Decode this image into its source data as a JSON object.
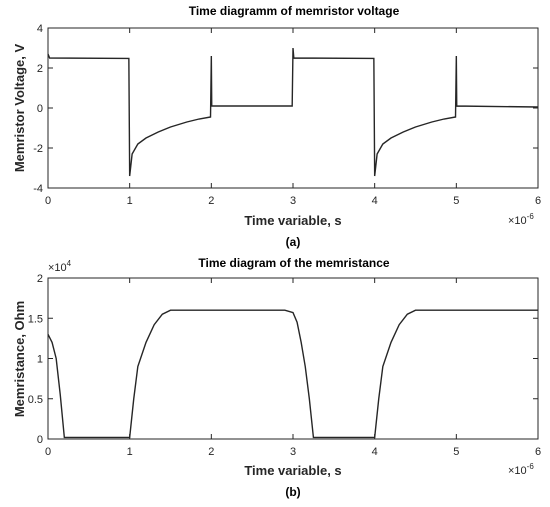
{
  "chart_data": [
    {
      "type": "line",
      "title": "Time diagramm of memristor voltage",
      "xlabel": "Time variable, s",
      "ylabel": "Memristor Voltage, V",
      "x_exponent_label": "×10",
      "x_exponent": "-6",
      "subfigure_label": "(a)",
      "xlim": [
        0,
        6
      ],
      "ylim": [
        -4,
        4
      ],
      "xticks": [
        "0",
        "1",
        "2",
        "3",
        "4",
        "5",
        "6"
      ],
      "yticks": [
        "-4",
        "-2",
        "0",
        "2",
        "4"
      ],
      "grid": false,
      "series": [
        {
          "values": [
            [
              0,
              2.7
            ],
            [
              0.02,
              2.5
            ],
            [
              0.99,
              2.48
            ],
            [
              1.0,
              -3.4
            ],
            [
              1.03,
              -2.3
            ],
            [
              1.1,
              -1.8
            ],
            [
              1.2,
              -1.5
            ],
            [
              1.35,
              -1.2
            ],
            [
              1.5,
              -0.95
            ],
            [
              1.7,
              -0.7
            ],
            [
              1.85,
              -0.55
            ],
            [
              1.99,
              -0.45
            ],
            [
              2.0,
              2.6
            ],
            [
              2.005,
              0.1
            ],
            [
              2.99,
              0.1
            ],
            [
              3.0,
              3.0
            ],
            [
              3.01,
              2.5
            ],
            [
              3.99,
              2.48
            ],
            [
              4.0,
              -3.4
            ],
            [
              4.03,
              -2.3
            ],
            [
              4.1,
              -1.8
            ],
            [
              4.2,
              -1.5
            ],
            [
              4.35,
              -1.2
            ],
            [
              4.5,
              -0.95
            ],
            [
              4.7,
              -0.7
            ],
            [
              4.85,
              -0.55
            ],
            [
              4.99,
              -0.45
            ],
            [
              5.0,
              2.6
            ],
            [
              5.005,
              0.1
            ],
            [
              6.0,
              0.05
            ]
          ]
        }
      ]
    },
    {
      "type": "line",
      "title": "Time diagram of the memristance",
      "xlabel": "Time variable, s",
      "ylabel": "Memristance, Ohm",
      "x_exponent_label": "×10",
      "x_exponent": "-6",
      "y_exponent_label": "×10",
      "y_exponent": "4",
      "subfigure_label": "(b)",
      "xlim": [
        0,
        6
      ],
      "ylim": [
        0,
        2
      ],
      "xticks": [
        "0",
        "1",
        "2",
        "3",
        "4",
        "5",
        "6"
      ],
      "yticks": [
        "0",
        "0.5",
        "1",
        "1.5",
        "2"
      ],
      "grid": false,
      "series": [
        {
          "values": [
            [
              0,
              1.3
            ],
            [
              0.05,
              1.2
            ],
            [
              0.1,
              1.0
            ],
            [
              0.15,
              0.55
            ],
            [
              0.2,
              0.02
            ],
            [
              0.99,
              0.02
            ],
            [
              1.0,
              0.02
            ],
            [
              1.05,
              0.5
            ],
            [
              1.1,
              0.9
            ],
            [
              1.2,
              1.2
            ],
            [
              1.3,
              1.42
            ],
            [
              1.4,
              1.55
            ],
            [
              1.5,
              1.6
            ],
            [
              2.9,
              1.6
            ],
            [
              3.0,
              1.57
            ],
            [
              3.05,
              1.45
            ],
            [
              3.1,
              1.2
            ],
            [
              3.15,
              0.9
            ],
            [
              3.2,
              0.5
            ],
            [
              3.25,
              0.02
            ],
            [
              3.99,
              0.02
            ],
            [
              4.0,
              0.02
            ],
            [
              4.05,
              0.5
            ],
            [
              4.1,
              0.9
            ],
            [
              4.2,
              1.2
            ],
            [
              4.3,
              1.42
            ],
            [
              4.4,
              1.55
            ],
            [
              4.5,
              1.6
            ],
            [
              6.0,
              1.6
            ]
          ]
        }
      ]
    }
  ]
}
